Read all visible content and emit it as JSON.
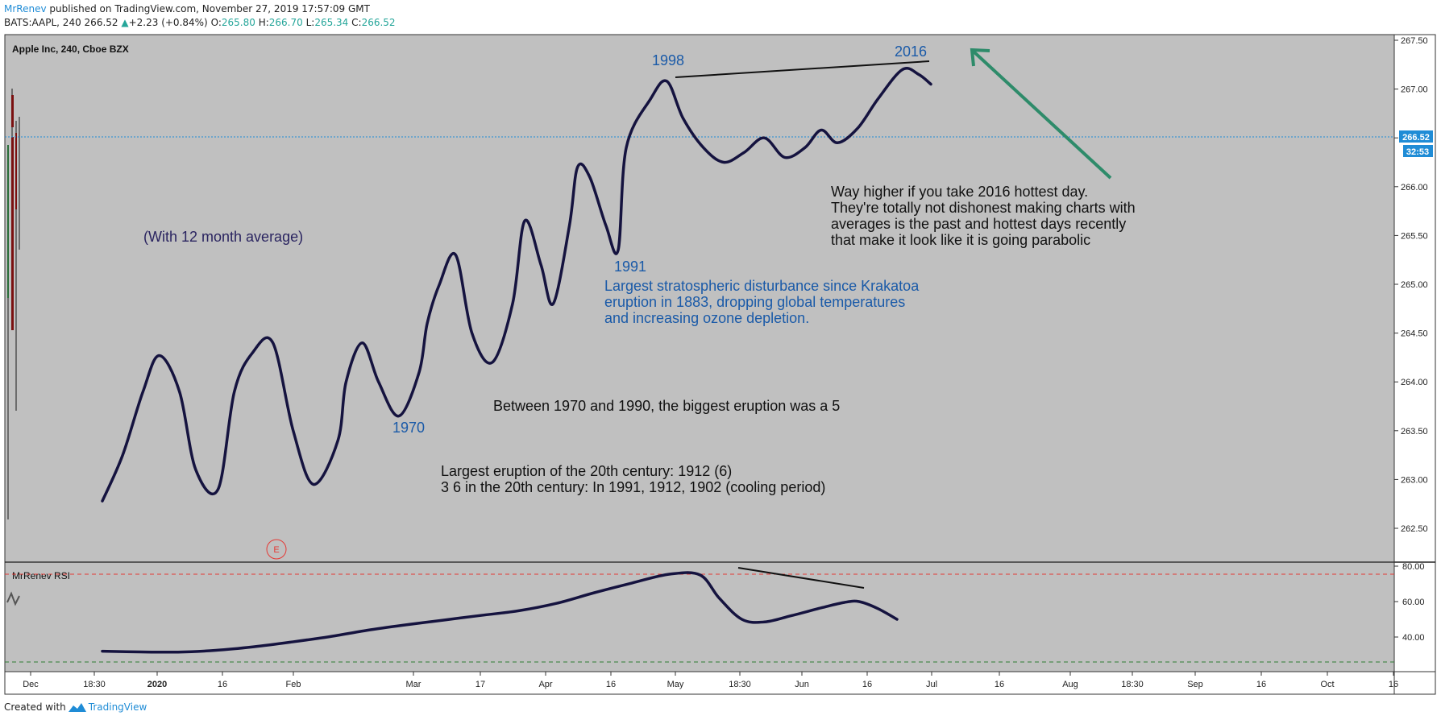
{
  "header": {
    "author": "MrRenev",
    "published": " published on TradingView.com, November 27, 2019 17:57:09 GMT",
    "symbol": "BATS:AAPL, 240",
    "price": "266.52",
    "change": "+2.23 (+0.84%)",
    "o_label": "O:",
    "o_value": "265.80",
    "h_label": "H:",
    "h_value": "266.70",
    "l_label": "L:",
    "l_value": "265.34",
    "c_label": "C:",
    "c_value": "266.52"
  },
  "footer": {
    "created_with": "Created with",
    "brand": "TradingView"
  },
  "chart_data": [
    {
      "type": "line",
      "title": "Apple Inc, 240, Cboe BZX",
      "ylim": [
        262.2,
        267.6
      ],
      "y_ticks": [
        "267.50",
        "267.00",
        "266.50",
        "266.00",
        "265.50",
        "265.00",
        "264.50",
        "264.00",
        "263.50",
        "263.00",
        "262.50"
      ],
      "x_ticks": [
        "Dec",
        "18:30",
        "2020",
        "16",
        "Feb",
        "Mar",
        "17",
        "Apr",
        "16",
        "May",
        "18:30",
        "Jun",
        "16",
        "Jul",
        "16",
        "Aug",
        "18:30",
        "Sep",
        "16",
        "Oct",
        "16"
      ],
      "current_price_label": "266.52",
      "countdown_label": "32:53",
      "series": [
        {
          "values": [
            [
              0.0,
              262.78
            ],
            [
              0.5,
              263.25
            ],
            [
              1.0,
              263.9
            ],
            [
              1.4,
              264.27
            ],
            [
              1.9,
              263.9
            ],
            [
              2.3,
              263.1
            ],
            [
              2.85,
              262.9
            ],
            [
              3.25,
              263.9
            ],
            [
              3.7,
              264.3
            ],
            [
              4.2,
              264.4
            ],
            [
              4.7,
              263.5
            ],
            [
              5.2,
              262.95
            ],
            [
              5.8,
              263.4
            ],
            [
              6.0,
              264.0
            ],
            [
              6.4,
              264.4
            ],
            [
              6.8,
              264.0
            ],
            [
              7.3,
              263.65
            ],
            [
              7.8,
              264.1
            ],
            [
              8.0,
              264.6
            ],
            [
              8.3,
              265.0
            ],
            [
              8.7,
              265.3
            ],
            [
              9.1,
              264.5
            ],
            [
              9.6,
              264.2
            ],
            [
              10.1,
              264.8
            ],
            [
              10.4,
              265.65
            ],
            [
              10.8,
              265.2
            ],
            [
              11.1,
              264.8
            ],
            [
              11.5,
              265.6
            ],
            [
              11.7,
              266.2
            ],
            [
              12.0,
              266.1
            ],
            [
              12.4,
              265.6
            ],
            [
              12.7,
              265.35
            ],
            [
              12.9,
              266.4
            ],
            [
              13.5,
              266.9
            ],
            [
              13.9,
              267.08
            ],
            [
              14.3,
              266.7
            ],
            [
              14.8,
              266.4
            ],
            [
              15.3,
              266.25
            ],
            [
              15.8,
              266.35
            ],
            [
              16.3,
              266.5
            ],
            [
              16.8,
              266.3
            ],
            [
              17.3,
              266.4
            ],
            [
              17.7,
              266.58
            ],
            [
              18.1,
              266.45
            ],
            [
              18.6,
              266.6
            ],
            [
              19.1,
              266.9
            ],
            [
              19.7,
              267.2
            ],
            [
              20.1,
              267.15
            ],
            [
              20.4,
              267.05
            ]
          ]
        }
      ],
      "annotations": {
        "note_avg": "(With 12 month average)",
        "label_1970": "1970",
        "label_1991": "1991",
        "label_1998": "1998",
        "label_2016": "2016",
        "note_1991": [
          "Largest stratospheric disturbance since Krakatoa",
          "eruption in 1883, dropping global temperatures",
          "and increasing ozone depletion."
        ],
        "note_2016": [
          "Way higher if you take 2016 hottest day.",
          "They're totally not dishonest making charts with",
          "averages is the past and hottest days recently",
          "that make it look like it is going parabolic"
        ],
        "note_1970_1990": "Between 1970 and 1990, the biggest eruption was a 5",
        "note_century": [
          "Largest eruption of the 20th century: 1912 (6)",
          "3 6 in the 20th century: In 1991, 1912, 1902 (cooling period)"
        ],
        "earnings_marker": "E"
      }
    },
    {
      "type": "line",
      "title": "MrRenev RSI",
      "ylim": [
        25,
        82
      ],
      "y_ticks": [
        "80.00",
        "60.00",
        "40.00"
      ],
      "overbought": 75,
      "oversold": 30,
      "series": [
        {
          "values": [
            [
              0.0,
              32
            ],
            [
              1.0,
              31.6
            ],
            [
              2.0,
              31.5
            ],
            [
              3.0,
              32.5
            ],
            [
              4.0,
              34.5
            ],
            [
              5.0,
              37.2
            ],
            [
              6.0,
              40.2
            ],
            [
              7.0,
              43.8
            ],
            [
              8.0,
              46.8
            ],
            [
              9.0,
              49.5
            ],
            [
              10.0,
              52.2
            ],
            [
              11.0,
              54.8
            ],
            [
              12.0,
              59
            ],
            [
              13.0,
              65
            ],
            [
              14.0,
              70.5
            ],
            [
              15.0,
              75.5
            ],
            [
              15.8,
              75
            ],
            [
              16.3,
              62
            ],
            [
              16.9,
              50
            ],
            [
              17.5,
              48.5
            ],
            [
              18.2,
              52
            ],
            [
              19.0,
              56.5
            ],
            [
              19.6,
              59.5
            ],
            [
              20.0,
              60
            ],
            [
              20.5,
              56
            ],
            [
              21.0,
              50
            ]
          ]
        }
      ]
    }
  ]
}
